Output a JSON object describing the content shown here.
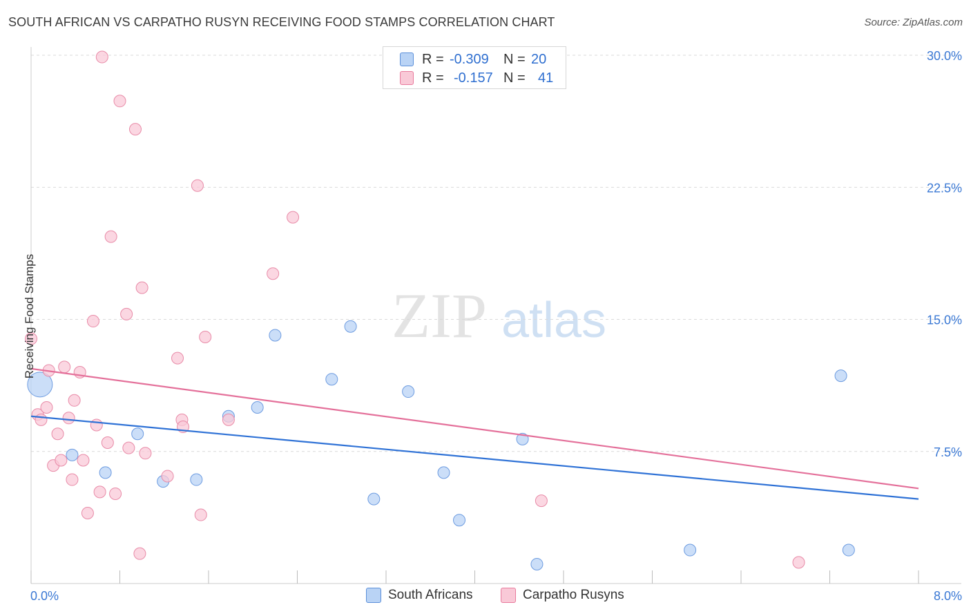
{
  "title": "SOUTH AFRICAN VS CARPATHO RUSYN RECEIVING FOOD STAMPS CORRELATION CHART",
  "source": "Source: ZipAtlas.com",
  "watermark": {
    "zip": "ZIP",
    "atlas": "atlas"
  },
  "legend_top": {
    "rows": [
      {
        "r_label": "R =",
        "r_value": "-0.309",
        "n_label": "N =",
        "n_value": "20"
      },
      {
        "r_label": "R =",
        "r_value": "-0.157",
        "n_label": "N =",
        "n_value": "41"
      }
    ]
  },
  "legend_bottom": {
    "items": [
      "South Africans",
      "Carpatho Rusyns"
    ]
  },
  "colors": {
    "blue_fill": "#b9d3f5",
    "blue_stroke": "#6c9be0",
    "blue_line": "#2f72d6",
    "pink_fill": "#f9cad8",
    "pink_stroke": "#e88aa7",
    "pink_line": "#e4709a",
    "tick_label": "#3a78d4",
    "grid": "#d9d9d9"
  },
  "chart_data": {
    "type": "scatter",
    "title": "SOUTH AFRICAN VS CARPATHO RUSYN RECEIVING FOOD STAMPS CORRELATION CHART",
    "xlabel": "",
    "ylabel": "Receiving Food Stamps",
    "xlim": [
      0,
      8
    ],
    "ylim": [
      0,
      30
    ],
    "x_tick_labels": [
      "0.0%",
      "8.0%"
    ],
    "y_ticks": [
      7.5,
      15,
      22.5,
      30
    ],
    "y_tick_labels": [
      "7.5%",
      "15.0%",
      "22.5%",
      "30.0%"
    ],
    "grid": "horizontal dashed",
    "legend_position": "bottom",
    "series": [
      {
        "name": "South Africans",
        "color": "#6c9be0",
        "points": [
          [
            0.08,
            11.3,
            "large"
          ],
          [
            0.37,
            7.3
          ],
          [
            0.67,
            6.3
          ],
          [
            0.96,
            8.5
          ],
          [
            1.19,
            5.8
          ],
          [
            1.49,
            5.9
          ],
          [
            1.78,
            9.5
          ],
          [
            2.04,
            10.0
          ],
          [
            2.2,
            14.1
          ],
          [
            2.71,
            11.6
          ],
          [
            2.88,
            14.6
          ],
          [
            3.09,
            4.8
          ],
          [
            3.4,
            10.9
          ],
          [
            3.72,
            6.3
          ],
          [
            3.86,
            3.6
          ],
          [
            4.43,
            8.2
          ],
          [
            4.56,
            1.1
          ],
          [
            5.94,
            1.9
          ],
          [
            7.3,
            11.8
          ],
          [
            7.37,
            1.9
          ]
        ],
        "trend": {
          "x": [
            0,
            8
          ],
          "y": [
            9.5,
            4.8
          ]
        }
      },
      {
        "name": "Carpatho Rusyns",
        "color": "#e88aa7",
        "points": [
          [
            0.0,
            13.9
          ],
          [
            0.06,
            9.6
          ],
          [
            0.09,
            9.3
          ],
          [
            0.14,
            10.0
          ],
          [
            0.16,
            12.1
          ],
          [
            0.2,
            6.7
          ],
          [
            0.24,
            8.5
          ],
          [
            0.27,
            7.0
          ],
          [
            0.3,
            12.3
          ],
          [
            0.34,
            9.4
          ],
          [
            0.37,
            5.9
          ],
          [
            0.39,
            10.4
          ],
          [
            0.44,
            12.0
          ],
          [
            0.47,
            7.0
          ],
          [
            0.51,
            4.0
          ],
          [
            0.56,
            14.9
          ],
          [
            0.59,
            9.0
          ],
          [
            0.62,
            5.2
          ],
          [
            0.64,
            29.9
          ],
          [
            0.69,
            8.0
          ],
          [
            0.72,
            19.7
          ],
          [
            0.76,
            5.1
          ],
          [
            0.8,
            27.4
          ],
          [
            0.86,
            15.3
          ],
          [
            0.88,
            7.7
          ],
          [
            0.94,
            25.8
          ],
          [
            0.98,
            1.7
          ],
          [
            1.0,
            16.8
          ],
          [
            1.03,
            7.4
          ],
          [
            1.23,
            6.1
          ],
          [
            1.32,
            12.8
          ],
          [
            1.36,
            9.3
          ],
          [
            1.37,
            8.9
          ],
          [
            1.5,
            22.6
          ],
          [
            1.53,
            3.9
          ],
          [
            1.57,
            14.0
          ],
          [
            1.78,
            9.3
          ],
          [
            2.18,
            17.6
          ],
          [
            2.36,
            20.8
          ],
          [
            4.6,
            4.7
          ],
          [
            6.92,
            1.2
          ]
        ],
        "trend": {
          "x": [
            0,
            8
          ],
          "y": [
            12.2,
            5.4
          ]
        }
      }
    ]
  }
}
